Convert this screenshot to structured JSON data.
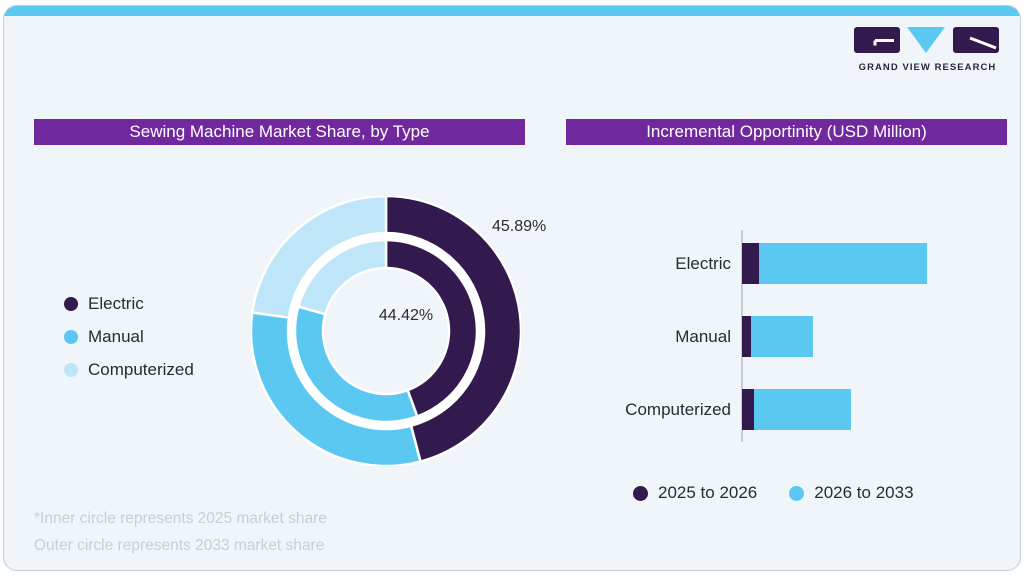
{
  "brand": {
    "logo_text": "GRAND VIEW RESEARCH"
  },
  "colors": {
    "accent_bar": "#5bc8f2",
    "title_bar": "#71289e",
    "dark_purple": "#321a4e",
    "mid_blue": "#5bc8f2",
    "pale_blue": "#bfe5f8",
    "card_bg": "#eff5f9",
    "footnote_text": "#c9ced7"
  },
  "left_panel": {
    "title": "Sewing Machine Market Share, by Type",
    "legend": [
      {
        "label": "Electric",
        "color": "#321a4e"
      },
      {
        "label": "Manual",
        "color": "#5bc8f2"
      },
      {
        "label": "Computerized",
        "color": "#bfe5f8"
      }
    ],
    "outer_ring_label": "45.89%",
    "inner_ring_label": "44.42%",
    "footnote_line1": "*Inner circle represents 2025 market share",
    "footnote_line2": "Outer circle represents 2033 market share"
  },
  "right_panel": {
    "title": "Incremental Opportinity (USD Million)",
    "legend": [
      {
        "label": "2025 to 2026",
        "color": "#321a4e"
      },
      {
        "label": "2026 to 2033",
        "color": "#5bc8f2"
      }
    ]
  },
  "chart_data": [
    {
      "type": "pie",
      "variant": "double-ring-donut",
      "title": "Sewing Machine Market Share, by Type",
      "categories": [
        "Electric",
        "Manual",
        "Computerized"
      ],
      "colors": [
        "#321a4e",
        "#5bc8f2",
        "#bfe5f8"
      ],
      "series": [
        {
          "name": "2025 market share (inner circle)",
          "values": [
            44.42,
            34.9,
            20.68
          ]
        },
        {
          "name": "2033 market share (outer circle)",
          "values": [
            45.89,
            31.3,
            22.81
          ]
        }
      ],
      "data_labels": {
        "outer_electric": "45.89%",
        "inner_electric": "44.42%"
      },
      "note": "Only the Electric slice is labeled in the image; Manual and Computerized values estimated from arc angles"
    },
    {
      "type": "bar",
      "orientation": "horizontal",
      "stacked": true,
      "title": "Incremental Opportinity (USD Million)",
      "categories": [
        "Electric",
        "Manual",
        "Computerized"
      ],
      "series": [
        {
          "name": "2025 to 2026",
          "color": "#321a4e",
          "values": [
            9.2,
            4.9,
            6.5
          ]
        },
        {
          "name": "2026 to 2033",
          "color": "#5bc8f2",
          "values": [
            90.8,
            33.5,
            52.4
          ]
        }
      ],
      "value_axis_visible": false,
      "units": "relative units (no numeric axis shown; longest bar total = 100)",
      "legend_position": "bottom"
    }
  ]
}
